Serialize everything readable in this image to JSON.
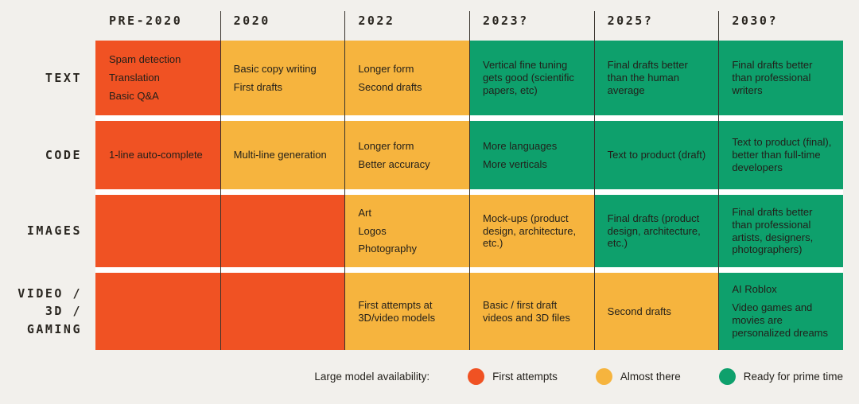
{
  "palette": {
    "background": "#F2F0EC",
    "row_gap": "#FFFFFF",
    "divider": "#37322C",
    "cell_text": "#221F1A",
    "label_text": "#2A2620",
    "first_attempts": "#F05223",
    "almost_there": "#F6B43E",
    "ready_for_prime_time": "#0EA06C"
  },
  "legend": {
    "label": "Large model availability:",
    "items": [
      {
        "key": "first_attempts",
        "label": "First attempts"
      },
      {
        "key": "almost_there",
        "label": "Almost there"
      },
      {
        "key": "ready_for_prime_time",
        "label": "Ready for prime time"
      }
    ]
  },
  "chart_data": {
    "type": "table",
    "legend_label": "Large model availability:",
    "status_levels": [
      "first_attempts",
      "almost_there",
      "ready_for_prime_time"
    ],
    "columns": [
      "PRE-2020",
      "2020",
      "2022",
      "2023?",
      "2025?",
      "2030?"
    ],
    "rows": [
      {
        "label": "TEXT",
        "cells": [
          {
            "status": "first_attempts",
            "items": [
              "Spam detection",
              "Translation",
              "Basic Q&A"
            ]
          },
          {
            "status": "almost_there",
            "items": [
              "Basic copy writing",
              "First drafts"
            ]
          },
          {
            "status": "almost_there",
            "items": [
              "Longer form",
              "Second drafts"
            ]
          },
          {
            "status": "ready_for_prime_time",
            "items": [
              "Vertical fine tuning gets good (scientific papers, etc)"
            ]
          },
          {
            "status": "ready_for_prime_time",
            "items": [
              "Final drafts better than the human average"
            ]
          },
          {
            "status": "ready_for_prime_time",
            "items": [
              "Final drafts better than professional writers"
            ]
          }
        ]
      },
      {
        "label": "CODE",
        "cells": [
          {
            "status": "first_attempts",
            "items": [
              "1-line auto-complete"
            ]
          },
          {
            "status": "almost_there",
            "items": [
              "Multi-line generation"
            ]
          },
          {
            "status": "almost_there",
            "items": [
              "Longer form",
              "Better accuracy"
            ]
          },
          {
            "status": "ready_for_prime_time",
            "items": [
              "More languages",
              "More verticals"
            ]
          },
          {
            "status": "ready_for_prime_time",
            "items": [
              "Text to product (draft)"
            ]
          },
          {
            "status": "ready_for_prime_time",
            "items": [
              "Text to product (final), better than full-time developers"
            ]
          }
        ]
      },
      {
        "label": "IMAGES",
        "cells": [
          {
            "status": "first_attempts",
            "items": []
          },
          {
            "status": "first_attempts",
            "items": []
          },
          {
            "status": "almost_there",
            "items": [
              "Art",
              "Logos",
              "Photography"
            ]
          },
          {
            "status": "almost_there",
            "items": [
              "Mock-ups (product design, architecture, etc.)"
            ]
          },
          {
            "status": "ready_for_prime_time",
            "items": [
              "Final drafts (product design, architecture, etc.)"
            ]
          },
          {
            "status": "ready_for_prime_time",
            "items": [
              "Final drafts better than professional artists, designers, photographers)"
            ]
          }
        ]
      },
      {
        "label": "VIDEO / 3D / GAMING",
        "label_lines": [
          "VIDEO /",
          "3D /",
          "GAMING"
        ],
        "cells": [
          {
            "status": "first_attempts",
            "items": []
          },
          {
            "status": "first_attempts",
            "items": []
          },
          {
            "status": "almost_there",
            "items": [
              "First attempts at 3D/video models"
            ]
          },
          {
            "status": "almost_there",
            "items": [
              "Basic / first draft videos and 3D files"
            ]
          },
          {
            "status": "almost_there",
            "items": [
              "Second drafts"
            ]
          },
          {
            "status": "ready_for_prime_time",
            "items": [
              "AI Roblox",
              "Video games and movies are personalized dreams"
            ]
          }
        ]
      }
    ]
  }
}
